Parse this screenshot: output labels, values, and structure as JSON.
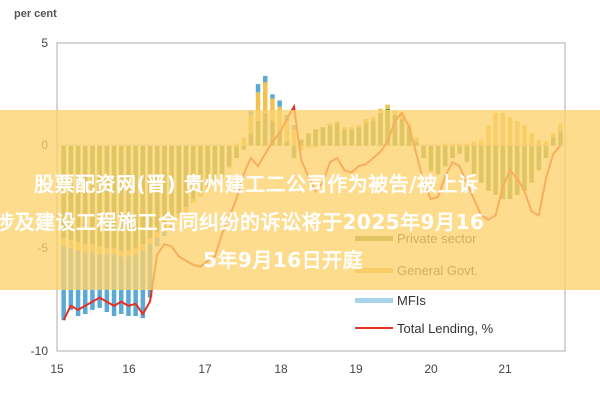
{
  "headline": {
    "line1": "股票配资网(晋) 贵州建工二公司作为被告/被上诉",
    "line2": "涉及建设工程施工合同纠纷的诉讼将于2025年9月16",
    "line3": "5年9月16日开庭"
  },
  "colors": {
    "private_sector": "#7a9a3a",
    "general_govt": "#f2c14e",
    "mfis": "#5aa9d6",
    "total_lending": "#e63020",
    "banner": "#fdd26e"
  },
  "chart_data": {
    "type": "bar",
    "title": "",
    "ylabel": "per cent",
    "xlabel": "",
    "ylim": [
      -10,
      5
    ],
    "yticks": [
      "5",
      "0",
      "-5",
      "-10"
    ],
    "xticks": [
      "15",
      "16",
      "17",
      "18",
      "19",
      "20",
      "21"
    ],
    "grid": false,
    "legend_position": "lower right",
    "legend": [
      "Private sector",
      "General Govt.",
      "MFIs",
      "Total Lending, %"
    ],
    "series": [
      {
        "name": "Private sector",
        "type": "bar",
        "color": "#7a9a3a",
        "values": [
          -4.5,
          -4.6,
          -4.7,
          -4.8,
          -4.8,
          -4.9,
          -5.0,
          -5.0,
          -5.1,
          -5.1,
          -5.0,
          -4.8,
          -4.5,
          -4.2,
          -3.9,
          -3.6,
          -3.3,
          -3.0,
          -2.6,
          -2.3,
          -2.0,
          -1.7,
          -1.4,
          -1.0,
          -0.6,
          -0.2,
          0.6,
          1.2,
          1.6,
          1.2,
          0.7,
          0.2,
          -0.6,
          0.3,
          0.6,
          0.8,
          0.9,
          1.0,
          1.1,
          0.8,
          0.8,
          0.9,
          1.1,
          1.2,
          1.6,
          1.8,
          1.5,
          1.3,
          0.9,
          0.2,
          -0.6,
          -1.2,
          -1.4,
          -1.0,
          -0.6,
          -0.4,
          -0.8,
          -1.4,
          -1.8,
          -2.2,
          -2.4,
          -2.6,
          -2.6,
          -2.4,
          -2.2,
          -1.8,
          -1.2,
          -0.6,
          0.4,
          0.7
        ]
      },
      {
        "name": "General Govt.",
        "type": "bar",
        "color": "#f2c14e",
        "values": [
          -0.4,
          -0.4,
          -0.4,
          -0.4,
          -0.4,
          -0.4,
          -0.3,
          -0.3,
          -0.3,
          -0.3,
          -0.3,
          -0.3,
          -0.3,
          -0.3,
          -0.3,
          -0.3,
          -0.3,
          -0.3,
          -0.2,
          -0.2,
          -0.2,
          -0.2,
          -0.2,
          -0.1,
          0.1,
          0.4,
          0.9,
          1.4,
          1.5,
          1.1,
          1.2,
          1.0,
          0.8,
          -0.2,
          -0.1,
          -0.1,
          0.0,
          0.1,
          0.1,
          0.1,
          0.1,
          0.1,
          0.2,
          0.2,
          0.2,
          0.2,
          0.2,
          0.3,
          0.2,
          0.2,
          0.0,
          -0.1,
          0.0,
          0.1,
          0.1,
          0.1,
          0.1,
          0.2,
          0.3,
          1.0,
          1.6,
          1.6,
          1.4,
          1.2,
          1.0,
          0.6,
          0.3,
          0.2,
          0.2,
          0.4
        ]
      },
      {
        "name": "MFIs",
        "type": "bar",
        "color": "#5aa9d6",
        "values": [
          -3.6,
          -3.0,
          -3.2,
          -3.0,
          -2.8,
          -2.6,
          -2.8,
          -3.0,
          -2.8,
          -2.9,
          -3.0,
          -3.3,
          -2.6,
          -0.4,
          -0.2,
          -0.1,
          0,
          0,
          0,
          0,
          0,
          0,
          0,
          0,
          0,
          0,
          0.2,
          0.4,
          0.3,
          0.2,
          0.3,
          0.3,
          0.2,
          0,
          0,
          0,
          0,
          0,
          0,
          0,
          0,
          0,
          0,
          0,
          0,
          0,
          0,
          0,
          0,
          0,
          0,
          0,
          0,
          0,
          0,
          0,
          0,
          0,
          0,
          0,
          0,
          0,
          0,
          0,
          0,
          0,
          0,
          0,
          0,
          0
        ]
      },
      {
        "name": "Total Lending, %",
        "type": "line",
        "color": "#e63020",
        "values": [
          -8.5,
          -7.8,
          -8.0,
          -7.8,
          -7.6,
          -7.4,
          -7.6,
          -7.8,
          -7.6,
          -7.8,
          -7.7,
          -8.2,
          -7.6,
          -5.3,
          -4.8,
          -4.9,
          -5.4,
          -5.6,
          -5.8,
          -5.9,
          -5.6,
          -5.4,
          -4.3,
          -3.5,
          -2.6,
          -1.4,
          -0.6,
          -1.0,
          -0.4,
          0.2,
          0.6,
          1.3,
          1.9,
          -0.7,
          -1.5,
          -2.2,
          -1.8,
          -0.8,
          -0.6,
          -1.2,
          -1.3,
          -1.0,
          -0.9,
          -0.6,
          -0.3,
          0.2,
          1.2,
          1.6,
          0.9,
          -0.4,
          -1.8,
          -2.6,
          -2.5,
          -1.5,
          -0.8,
          -1.0,
          -1.8,
          -2.6,
          -3.4,
          -3.6,
          -3.4,
          -2.0,
          -1.2,
          -1.6,
          -2.2,
          -3.2,
          -3.4,
          -1.6,
          -0.4,
          0.0
        ]
      }
    ]
  }
}
